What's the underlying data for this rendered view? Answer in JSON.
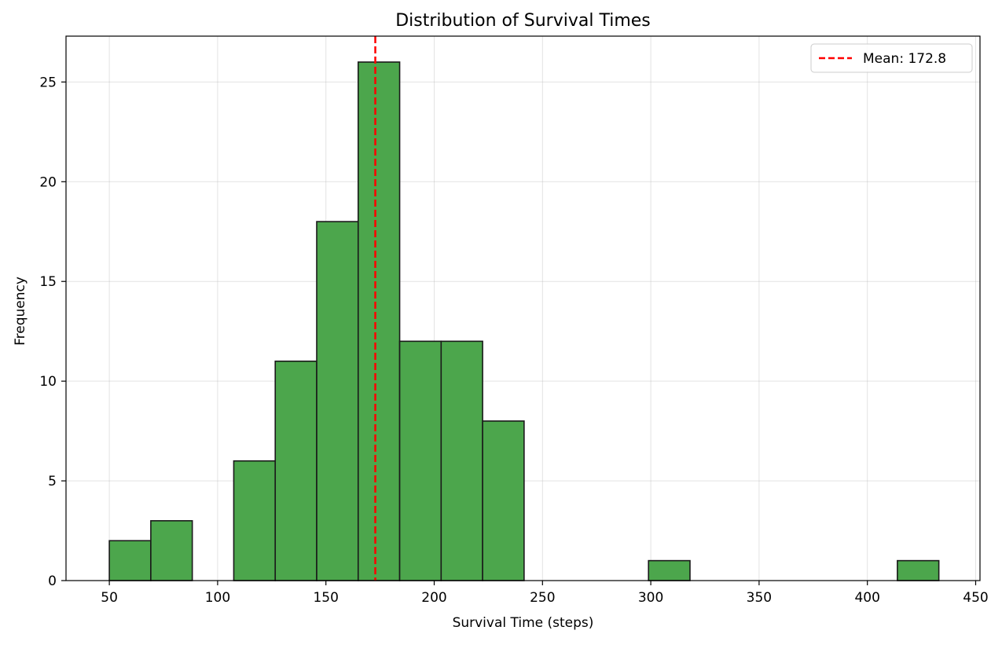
{
  "chart_data": {
    "type": "bar",
    "title": "Distribution of Survival Times",
    "xlabel": "Survival Time (steps)",
    "ylabel": "Frequency",
    "xlim": [
      30,
      452
    ],
    "ylim": [
      0,
      27.3
    ],
    "xticks": [
      50,
      100,
      150,
      200,
      250,
      300,
      350,
      400,
      450
    ],
    "yticks": [
      0,
      5,
      10,
      15,
      20,
      25
    ],
    "grid": true,
    "bin_width": 19.15,
    "bins": [
      {
        "start": 50.0,
        "end": 69.15,
        "count": 2
      },
      {
        "start": 69.15,
        "end": 88.3,
        "count": 3
      },
      {
        "start": 88.3,
        "end": 107.45,
        "count": 0
      },
      {
        "start": 107.45,
        "end": 126.6,
        "count": 6
      },
      {
        "start": 126.6,
        "end": 145.75,
        "count": 11
      },
      {
        "start": 145.75,
        "end": 164.9,
        "count": 18
      },
      {
        "start": 164.9,
        "end": 184.05,
        "count": 26
      },
      {
        "start": 184.05,
        "end": 203.2,
        "count": 12
      },
      {
        "start": 203.2,
        "end": 222.35,
        "count": 12
      },
      {
        "start": 222.35,
        "end": 241.5,
        "count": 8
      },
      {
        "start": 241.5,
        "end": 260.65,
        "count": 0
      },
      {
        "start": 260.65,
        "end": 279.8,
        "count": 0
      },
      {
        "start": 279.8,
        "end": 298.95,
        "count": 0
      },
      {
        "start": 298.95,
        "end": 318.1,
        "count": 1
      },
      {
        "start": 318.1,
        "end": 337.25,
        "count": 0
      },
      {
        "start": 337.25,
        "end": 356.4,
        "count": 0
      },
      {
        "start": 356.4,
        "end": 375.55,
        "count": 0
      },
      {
        "start": 375.55,
        "end": 394.7,
        "count": 0
      },
      {
        "start": 394.7,
        "end": 413.85,
        "count": 0
      },
      {
        "start": 413.85,
        "end": 433.0,
        "count": 1
      }
    ],
    "mean_line": {
      "value": 172.8,
      "label": "Mean: 172.8",
      "color": "#ff0000",
      "style": "dashed"
    },
    "bar_color": "#4ca64c",
    "bar_edge_color": "#1a1a1a",
    "legend": {
      "position": "top-right",
      "entries": [
        "Mean: 172.8"
      ]
    }
  }
}
